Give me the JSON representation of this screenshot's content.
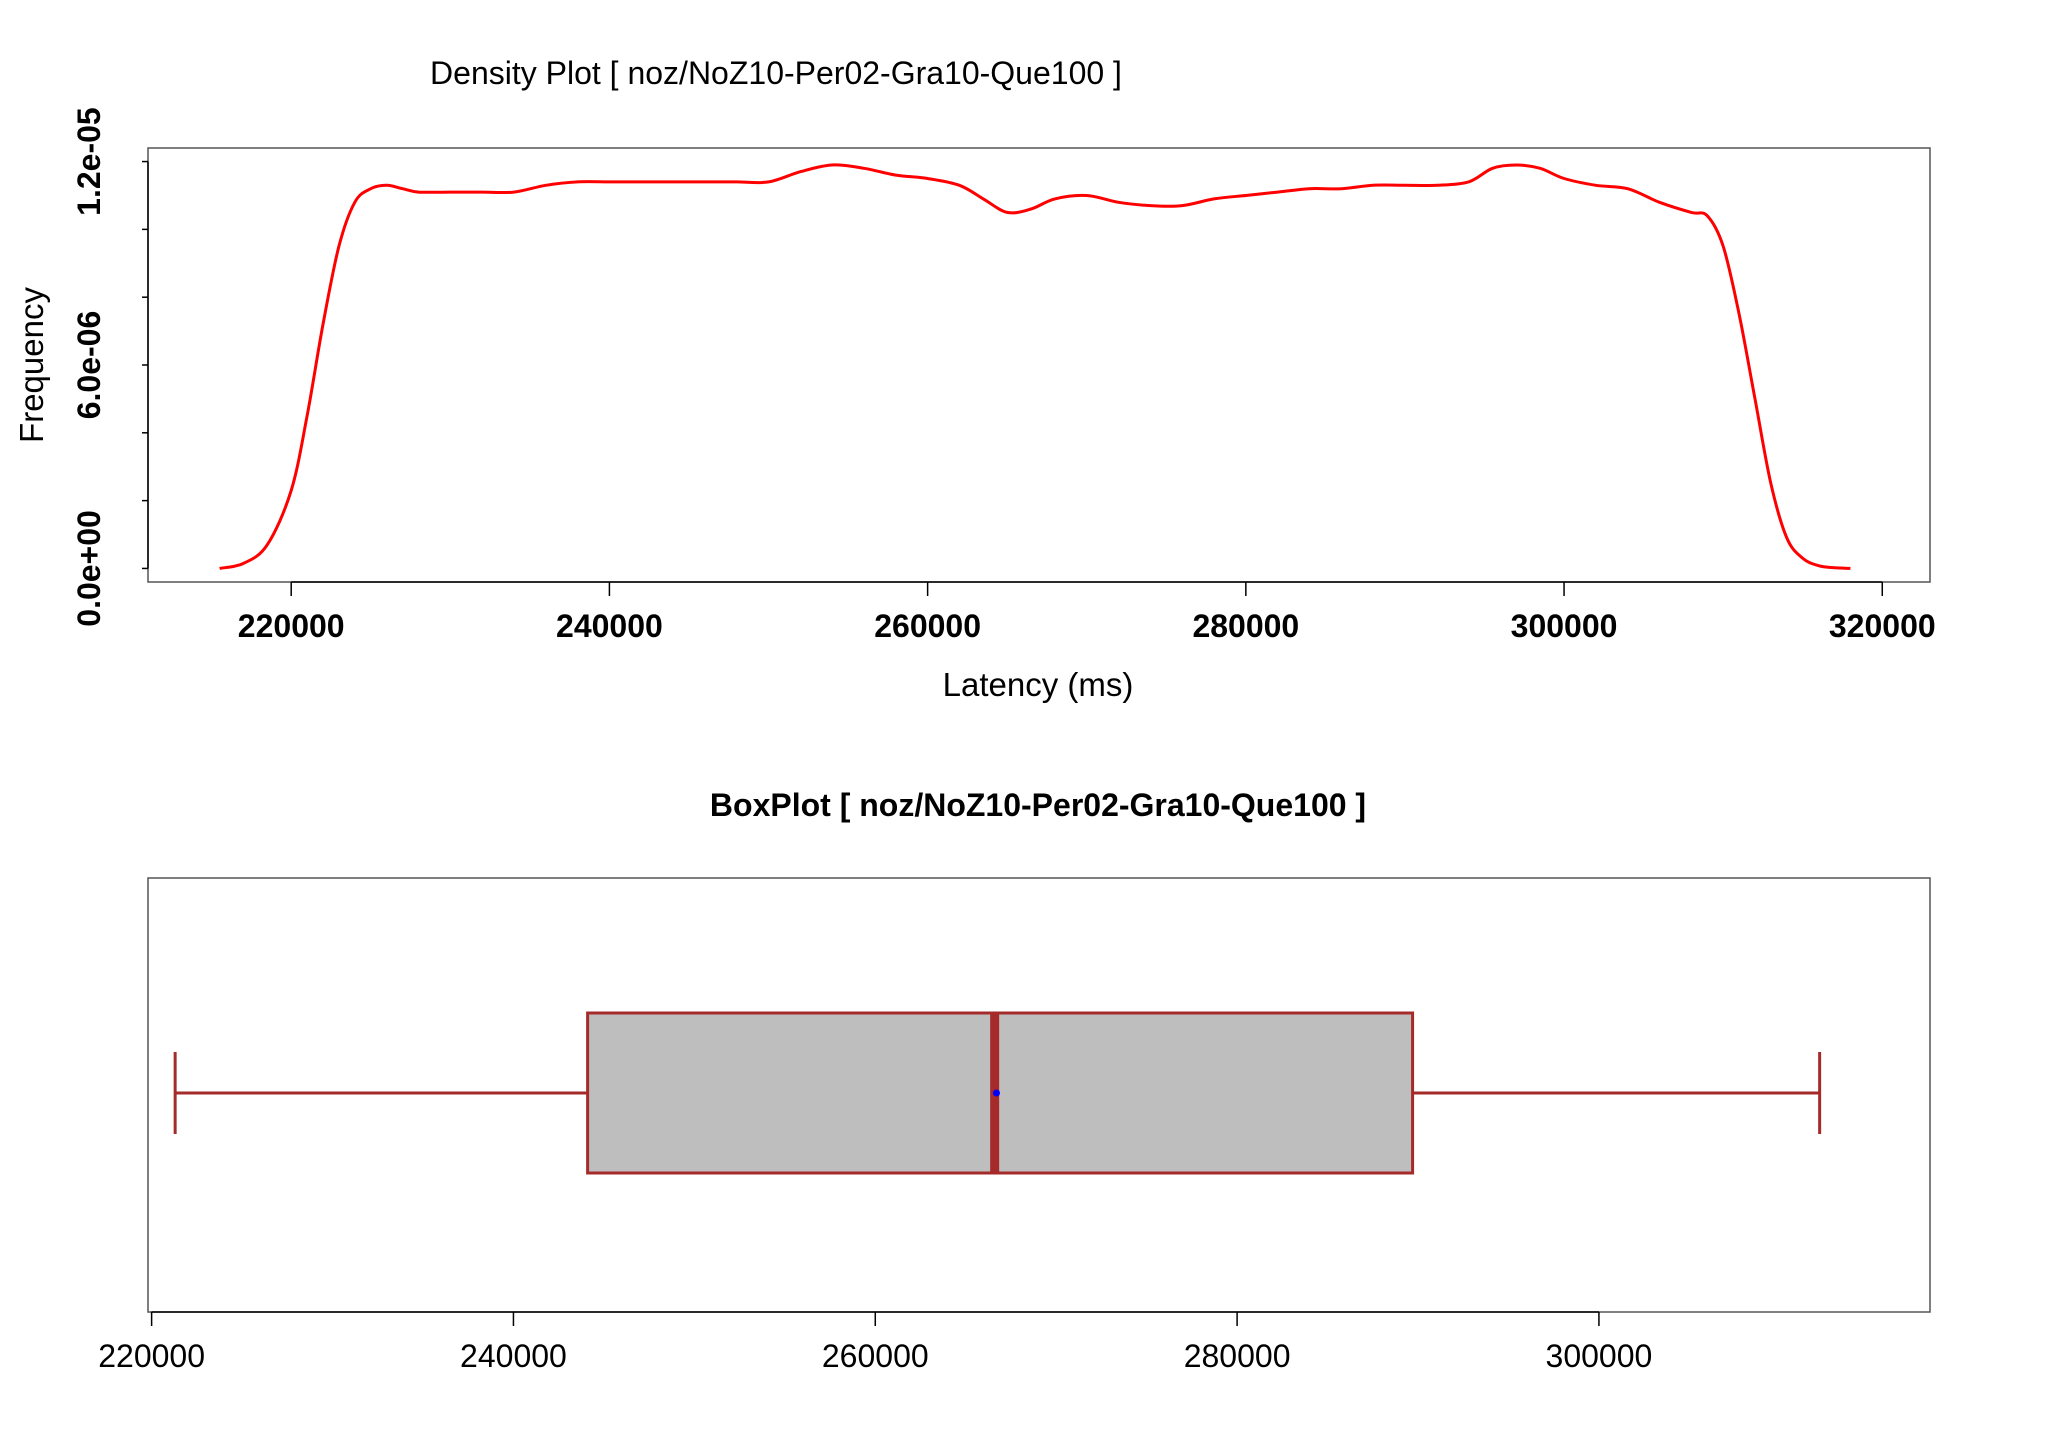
{
  "colors": {
    "density_line": "#ff0000",
    "box_fill": "#bebebe",
    "box_stroke": "#a52a2a",
    "mean_point": "#0000ff",
    "axis": "#000000",
    "frame": "#555555"
  },
  "chart_data": [
    {
      "type": "line",
      "title": "Density Plot [ noz/NoZ10-Per02-Gra10-Que100 ]",
      "xlabel": "Latency (ms)",
      "ylabel": "Frequency",
      "xlim": [
        211000,
        323000
      ],
      "ylim": [
        -4e-07,
        1.24e-05
      ],
      "x_ticks": [
        220000,
        240000,
        260000,
        280000,
        300000,
        320000
      ],
      "x_tick_labels": [
        "220000",
        "240000",
        "260000",
        "280000",
        "300000",
        "320000"
      ],
      "y_ticks": [
        0,
        2e-06,
        4e-06,
        6e-06,
        8e-06,
        1e-05,
        1.2e-05
      ],
      "y_tick_labels": [
        "0.0e+00",
        "",
        "",
        "6.0e-06",
        "",
        "",
        "1.2e-05"
      ],
      "grid": false,
      "series": [
        {
          "x": [
            215500,
            217000,
            218500,
            220000,
            221000,
            222000,
            223000,
            224000,
            225000,
            226000,
            227000,
            228000,
            230000,
            232000,
            234000,
            236000,
            238000,
            240000,
            242000,
            244000,
            246000,
            248000,
            250000,
            252000,
            254000,
            256000,
            258000,
            260000,
            262000,
            263500,
            265000,
            266500,
            268000,
            270000,
            272000,
            274000,
            276000,
            278000,
            280000,
            282000,
            284000,
            286000,
            288000,
            290000,
            292000,
            294000,
            295500,
            297000,
            298500,
            300000,
            302000,
            304000,
            306000,
            308000,
            309000,
            310000,
            311000,
            312000,
            313000,
            314000,
            315000,
            316000,
            317000,
            318000
          ],
          "y": [
            0.0,
            1.5e-07,
            7e-07,
            2.3e-06,
            4.5e-06,
            7.2e-06,
            9.5e-06,
            1.08e-05,
            1.12e-05,
            1.13e-05,
            1.12e-05,
            1.11e-05,
            1.11e-05,
            1.11e-05,
            1.11e-05,
            1.13e-05,
            1.14e-05,
            1.14e-05,
            1.14e-05,
            1.14e-05,
            1.14e-05,
            1.14e-05,
            1.14e-05,
            1.17e-05,
            1.19e-05,
            1.18e-05,
            1.16e-05,
            1.15e-05,
            1.13e-05,
            1.09e-05,
            1.05e-05,
            1.06e-05,
            1.09e-05,
            1.1e-05,
            1.08e-05,
            1.07e-05,
            1.07e-05,
            1.09e-05,
            1.1e-05,
            1.11e-05,
            1.12e-05,
            1.12e-05,
            1.13e-05,
            1.13e-05,
            1.13e-05,
            1.14e-05,
            1.18e-05,
            1.19e-05,
            1.18e-05,
            1.15e-05,
            1.13e-05,
            1.12e-05,
            1.08e-05,
            1.05e-05,
            1.04e-05,
            9.5e-06,
            7.5e-06,
            5e-06,
            2.5e-06,
            9e-07,
            3e-07,
            8e-08,
            2e-08,
            0.0
          ]
        }
      ]
    },
    {
      "type": "box",
      "title": "BoxPlot [ noz/NoZ10-Per02-Gra10-Que100 ]",
      "xlim": [
        219800,
        318300
      ],
      "x_ticks": [
        220000,
        240000,
        260000,
        280000,
        300000
      ],
      "x_tick_labels": [
        "220000",
        "240000",
        "260000",
        "280000",
        "300000"
      ],
      "grid": false,
      "whisker_low": 221300,
      "q1": 244100,
      "median": 266600,
      "q3": 289700,
      "whisker_high": 312200,
      "mean": 266700
    }
  ]
}
